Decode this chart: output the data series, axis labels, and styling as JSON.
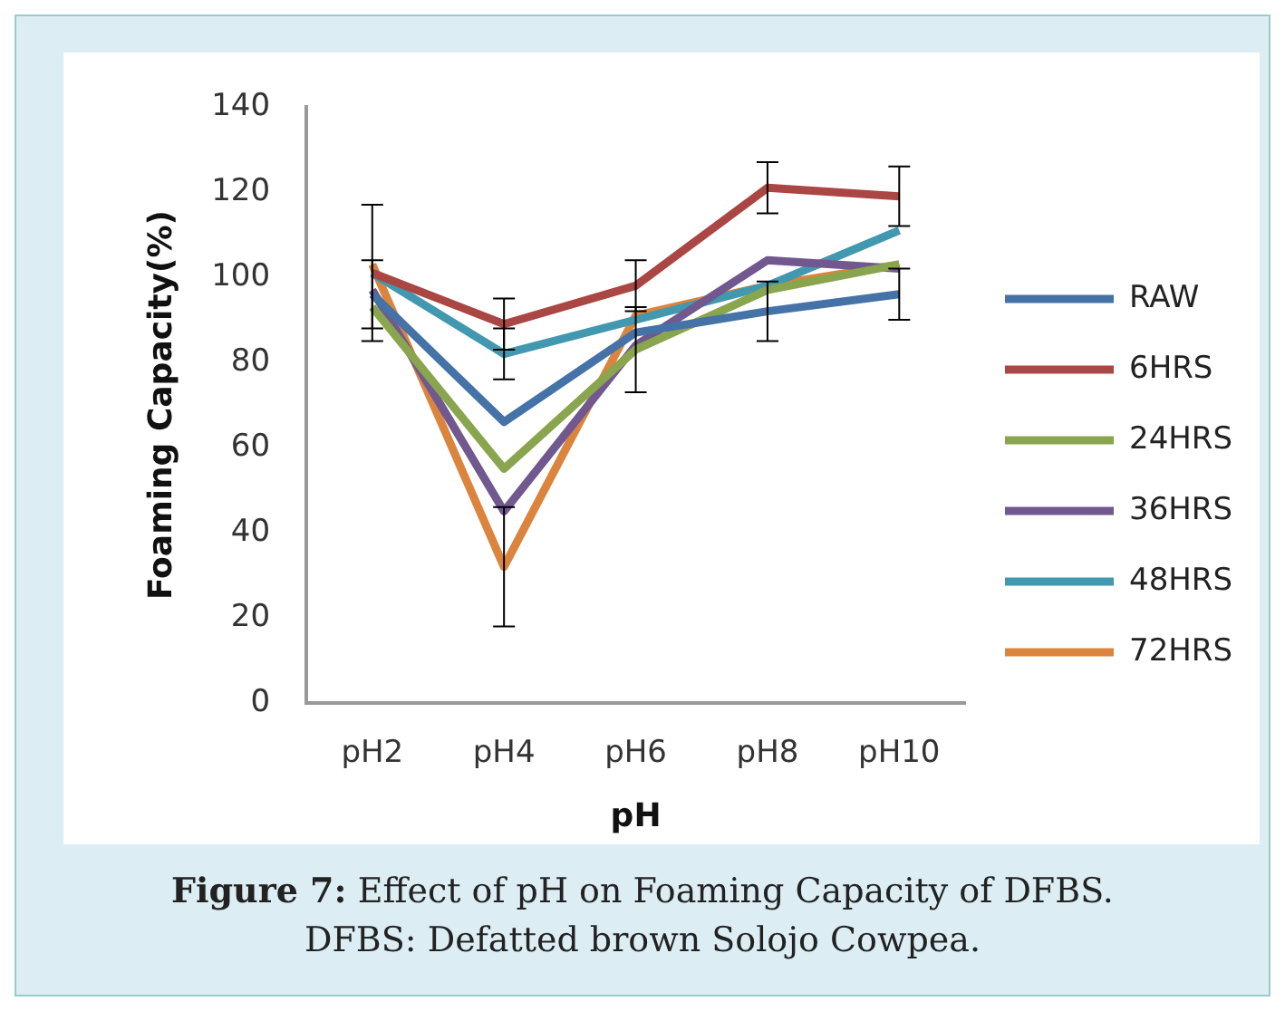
{
  "chart_data": {
    "type": "line",
    "categories": [
      "pH2",
      "pH4",
      "pH6",
      "pH8",
      "pH10"
    ],
    "xlabel": "pH",
    "ylabel": "Foaming Capacity(%)",
    "ylim": [
      0,
      140
    ],
    "yticks": [
      0,
      20,
      40,
      60,
      80,
      100,
      120,
      140
    ],
    "grid": false,
    "legend": "right",
    "marker": "none",
    "line_style": "solid",
    "series": [
      {
        "name": "RAW",
        "color": "#4572a7",
        "values": [
          96,
          66,
          87,
          92,
          96
        ],
        "errors": [
          8,
          null,
          null,
          7,
          6
        ]
      },
      {
        "name": "6HRS",
        "color": "#aa4643",
        "values": [
          101,
          89,
          98,
          121,
          119
        ],
        "errors": [
          16,
          6,
          6,
          6,
          7
        ]
      },
      {
        "name": "24HRS",
        "color": "#89a54e",
        "values": [
          93,
          55,
          83,
          97,
          103
        ],
        "errors": [
          null,
          null,
          10,
          null,
          null
        ]
      },
      {
        "name": "36HRS",
        "color": "#71588f",
        "values": [
          97,
          45,
          84,
          104,
          102
        ],
        "errors": [
          null,
          null,
          null,
          null,
          null
        ]
      },
      {
        "name": "48HRS",
        "color": "#4198af",
        "values": [
          101,
          82,
          90,
          98,
          111
        ],
        "errors": [
          null,
          6,
          null,
          null,
          null
        ]
      },
      {
        "name": "72HRS",
        "color": "#db843d",
        "values": [
          103,
          32,
          91,
          98,
          103
        ],
        "errors": [
          null,
          14,
          null,
          null,
          null
        ]
      }
    ],
    "annotations": [
      "Figure 7: Effect of pH on Foaming Capacity of DFBS.",
      "DFBS: Defatted brown Solojo Cowpea."
    ]
  }
}
